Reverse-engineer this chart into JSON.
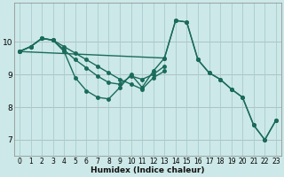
{
  "xlabel": "Humidex (Indice chaleur)",
  "bg_color": "#cce8e8",
  "grid_color": "#aacccc",
  "red_grid_color": "#cc9999",
  "line_color": "#1a6b5a",
  "xlim": [
    -0.5,
    23.5
  ],
  "ylim": [
    6.5,
    11.2
  ],
  "yticks": [
    7,
    8,
    9,
    10
  ],
  "xticks": [
    0,
    1,
    2,
    3,
    4,
    5,
    6,
    7,
    8,
    9,
    10,
    11,
    12,
    13,
    14,
    15,
    16,
    17,
    18,
    19,
    20,
    21,
    22,
    23
  ],
  "series": [
    {
      "x": [
        0,
        1,
        2,
        3,
        4,
        5,
        6,
        7,
        8,
        9,
        10,
        11,
        12,
        13,
        14,
        15,
        16,
        17,
        18,
        19,
        20,
        21,
        22,
        23
      ],
      "y": [
        9.7,
        9.85,
        10.1,
        10.05,
        9.7,
        8.9,
        8.5,
        8.3,
        8.25,
        8.6,
        9.0,
        8.6,
        9.1,
        9.5,
        10.65,
        10.6,
        9.45,
        9.05,
        8.85,
        8.55,
        8.3,
        7.45,
        7.0,
        7.6
      ]
    },
    {
      "x": [
        0,
        13,
        14,
        15,
        16,
        17,
        18,
        19,
        20,
        21,
        22,
        23
      ],
      "y": [
        9.7,
        9.5,
        10.65,
        10.6,
        9.45,
        9.05,
        8.85,
        8.55,
        8.3,
        7.45,
        7.0,
        7.6
      ]
    },
    {
      "x": [
        0,
        1,
        2,
        3,
        4,
        5,
        6,
        7,
        8,
        9,
        10,
        11,
        12,
        13
      ],
      "y": [
        9.7,
        9.85,
        10.1,
        10.05,
        9.85,
        9.65,
        9.45,
        9.25,
        9.05,
        8.85,
        8.7,
        8.55,
        8.9,
        9.1
      ]
    },
    {
      "x": [
        0,
        1,
        2,
        3,
        4,
        5,
        6,
        7,
        8,
        9,
        10,
        11,
        12,
        13
      ],
      "y": [
        9.7,
        9.85,
        10.1,
        10.05,
        9.75,
        9.45,
        9.2,
        8.95,
        8.75,
        8.7,
        8.95,
        8.85,
        9.0,
        9.25
      ]
    }
  ],
  "marker": "o",
  "markersize": 2.5,
  "linewidth": 1.0
}
